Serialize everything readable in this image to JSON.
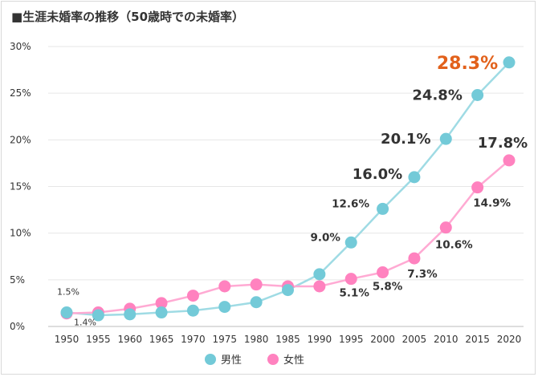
{
  "title": "■生涯未婚率の推移（50歳時での未婚率）",
  "colors": {
    "male": "#73cad8",
    "male_line": "#9fdbe4",
    "female": "#ff82bf",
    "female_line": "#ffaad3",
    "highlight": "#e2611b",
    "grid": "#e6e6e6"
  },
  "chart_data": {
    "type": "line",
    "title": "■生涯未婚率の推移（50歳時での未婚率）",
    "x": [
      "1950",
      "1955",
      "1960",
      "1965",
      "1970",
      "1975",
      "1980",
      "1985",
      "1990",
      "1995",
      "2000",
      "2005",
      "2010",
      "2015",
      "2020"
    ],
    "ylim": [
      0,
      30
    ],
    "yticks": [
      "0%",
      "5%",
      "10%",
      "15%",
      "20%",
      "25%",
      "30%"
    ],
    "grid": true,
    "legend_placement": "bottom-center",
    "series": [
      {
        "name": "男性",
        "color": "#73cad8",
        "values": [
          1.5,
          1.2,
          1.3,
          1.5,
          1.7,
          2.1,
          2.6,
          3.9,
          5.6,
          9.0,
          12.6,
          16.0,
          20.1,
          24.8,
          28.3
        ],
        "labels": {
          "0": "1.5%",
          "9": "9.0%",
          "10": "12.6%",
          "11": "16.0%",
          "12": "20.1%",
          "13": "24.8%",
          "14": "28.3%"
        }
      },
      {
        "name": "女性",
        "color": "#ff82bf",
        "values": [
          1.4,
          1.5,
          1.9,
          2.5,
          3.3,
          4.3,
          4.5,
          4.3,
          4.3,
          5.1,
          5.8,
          7.3,
          10.6,
          14.9,
          17.8
        ],
        "labels": {
          "0": "1.4%",
          "9": "5.1%",
          "10": "5.8%",
          "11": "7.3%",
          "12": "10.6%",
          "13": "14.9%",
          "14": "17.8%"
        }
      }
    ]
  }
}
